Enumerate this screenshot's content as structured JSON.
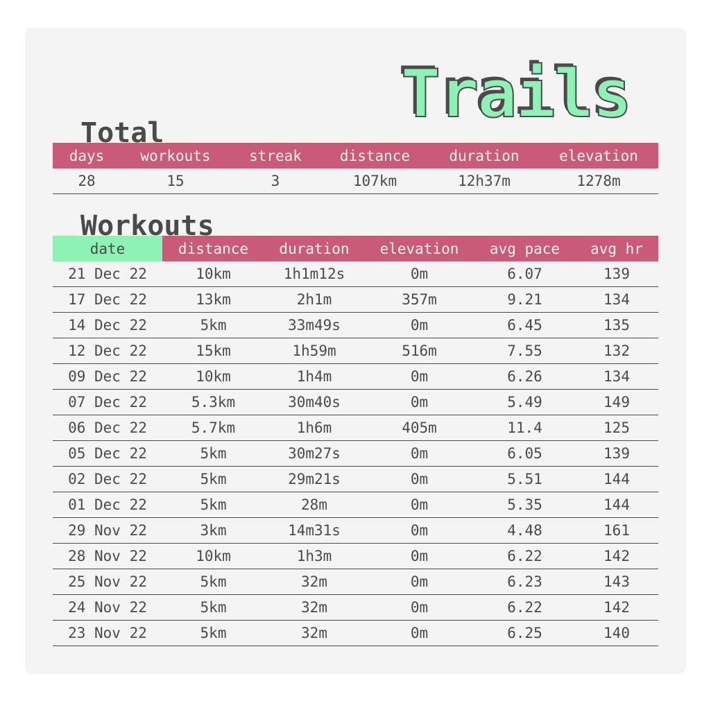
{
  "app": {
    "title": "Trails"
  },
  "totals": {
    "heading": "Total",
    "headers": [
      "days",
      "workouts",
      "streak",
      "distance",
      "duration",
      "elevation"
    ],
    "values": [
      "28",
      "15",
      "3",
      "107km",
      "12h37m",
      "1278m"
    ]
  },
  "workouts": {
    "heading": "Workouts",
    "headers": [
      "date",
      "distance",
      "duration",
      "elevation",
      "avg pace",
      "avg hr"
    ],
    "active_sort_column": "date",
    "rows": [
      [
        "21 Dec 22",
        "10km",
        "1h1m12s",
        "0m",
        "6.07",
        "139"
      ],
      [
        "17 Dec 22",
        "13km",
        "2h1m",
        "357m",
        "9.21",
        "134"
      ],
      [
        "14 Dec 22",
        "5km",
        "33m49s",
        "0m",
        "6.45",
        "135"
      ],
      [
        "12 Dec 22",
        "15km",
        "1h59m",
        "516m",
        "7.55",
        "132"
      ],
      [
        "09 Dec 22",
        "10km",
        "1h4m",
        "0m",
        "6.26",
        "134"
      ],
      [
        "07 Dec 22",
        "5.3km",
        "30m40s",
        "0m",
        "5.49",
        "149"
      ],
      [
        "06 Dec 22",
        "5.7km",
        "1h6m",
        "405m",
        "11.4",
        "125"
      ],
      [
        "05 Dec 22",
        "5km",
        "30m27s",
        "0m",
        "6.05",
        "139"
      ],
      [
        "02 Dec 22",
        "5km",
        "29m21s",
        "0m",
        "5.51",
        "144"
      ],
      [
        "01 Dec 22",
        "5km",
        "28m",
        "0m",
        "5.35",
        "144"
      ],
      [
        "29 Nov 22",
        "3km",
        "14m31s",
        "0m",
        "4.48",
        "161"
      ],
      [
        "28 Nov 22",
        "10km",
        "1h3m",
        "0m",
        "6.22",
        "142"
      ],
      [
        "25 Nov 22",
        "5km",
        "32m",
        "0m",
        "6.23",
        "143"
      ],
      [
        "24 Nov 22",
        "5km",
        "32m",
        "0m",
        "6.22",
        "142"
      ],
      [
        "23 Nov 22",
        "5km",
        "32m",
        "0m",
        "6.25",
        "140"
      ]
    ]
  },
  "colors": {
    "header_bg": "#c95b78",
    "active_header_bg": "#8df2b4",
    "title_fill": "#8df2b4",
    "text": "#4a4a4a",
    "card_bg": "#f4f4f4"
  }
}
